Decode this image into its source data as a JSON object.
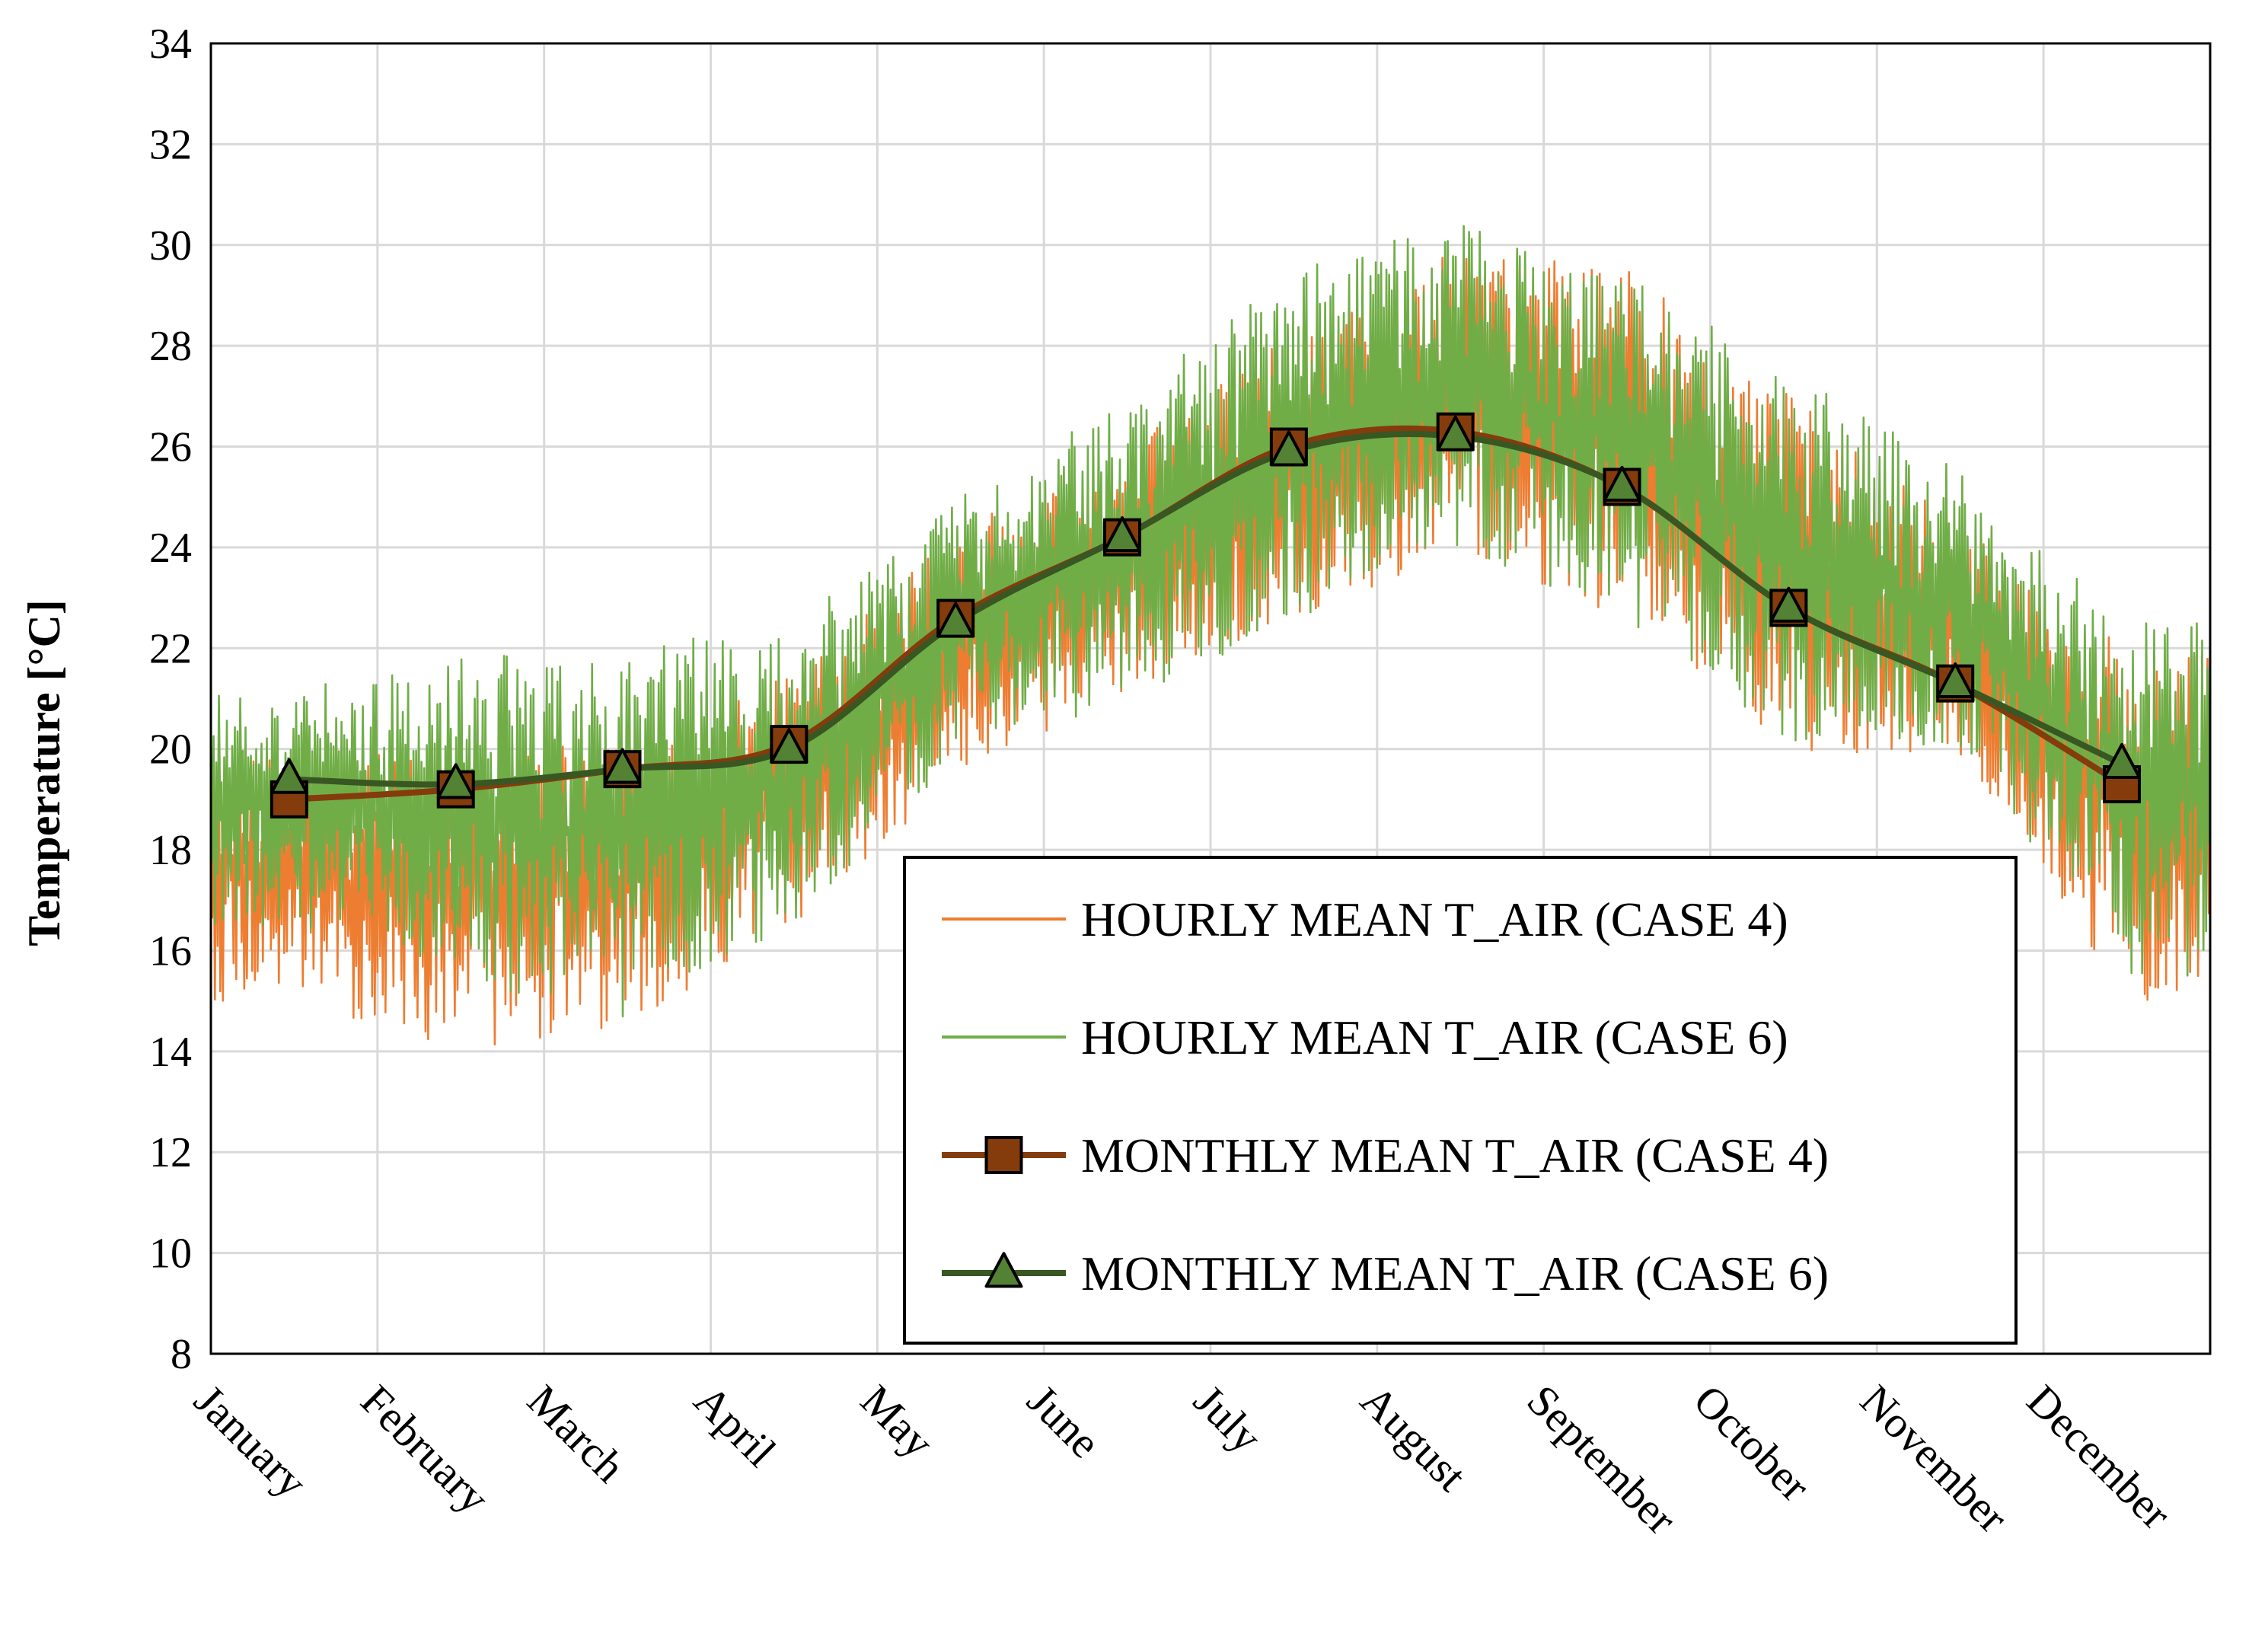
{
  "chart_data": {
    "type": "line",
    "title": "",
    "xlabel": "",
    "ylabel": "Temperature [°C]",
    "ylim": [
      8,
      34
    ],
    "yticks": [
      8,
      10,
      12,
      14,
      16,
      18,
      20,
      22,
      24,
      26,
      28,
      30,
      32,
      34
    ],
    "categories": [
      "January",
      "February",
      "March",
      "April",
      "May",
      "June",
      "July",
      "August",
      "September",
      "October",
      "November",
      "December"
    ],
    "grid": true,
    "legend_position": "bottom-right",
    "colors": {
      "hourly_case4": "#ED7D31",
      "hourly_case6": "#70AD47",
      "monthly_case4_line": "#843C0C",
      "monthly_case4_marker": "#843C0C",
      "monthly_case6_line": "#385723",
      "monthly_case6_marker": "#548235",
      "grid": "#D9D9D9",
      "axis": "#000000"
    },
    "series": [
      {
        "name": "HOURLY MEAN T_AIR (CASE 4)",
        "kind": "hourly",
        "marker": "none",
        "description_envelope": {
          "months": [
            "January",
            "February",
            "March",
            "April",
            "May",
            "June",
            "July",
            "August",
            "September",
            "October",
            "November",
            "December"
          ],
          "upper": [
            20.0,
            20.2,
            20.1,
            21.5,
            24.5,
            26.0,
            28.5,
            30.0,
            29.5,
            27.0,
            24.5,
            22.0
          ],
          "lower": [
            15.0,
            14.0,
            14.5,
            16.5,
            19.5,
            21.0,
            22.5,
            24.0,
            22.5,
            20.0,
            19.8,
            15.0
          ]
        }
      },
      {
        "name": "HOURLY MEAN T_AIR (CASE 6)",
        "kind": "hourly",
        "marker": "none",
        "description_envelope": {
          "months": [
            "January",
            "February",
            "March",
            "April",
            "May",
            "June",
            "July",
            "August",
            "September",
            "October",
            "November",
            "December"
          ],
          "upper": [
            21.2,
            21.8,
            22.0,
            22.5,
            25.0,
            27.0,
            29.5,
            30.5,
            29.5,
            27.5,
            25.5,
            22.5
          ],
          "lower": [
            16.5,
            15.5,
            14.5,
            16.5,
            19.8,
            21.0,
            22.5,
            24.0,
            22.5,
            20.0,
            20.0,
            15.5
          ]
        }
      },
      {
        "name": "MONTHLY MEAN T_AIR (CASE 4)",
        "kind": "monthly",
        "marker": "square",
        "values": [
          19.0,
          19.2,
          19.6,
          20.1,
          22.6,
          24.2,
          26.0,
          26.3,
          25.2,
          22.8,
          21.3,
          19.3
        ]
      },
      {
        "name": "MONTHLY MEAN T_AIR (CASE 6)",
        "kind": "monthly",
        "marker": "triangle",
        "values": [
          19.4,
          19.3,
          19.6,
          20.0,
          22.5,
          24.2,
          25.9,
          26.2,
          25.2,
          22.8,
          21.3,
          19.7
        ]
      }
    ]
  }
}
